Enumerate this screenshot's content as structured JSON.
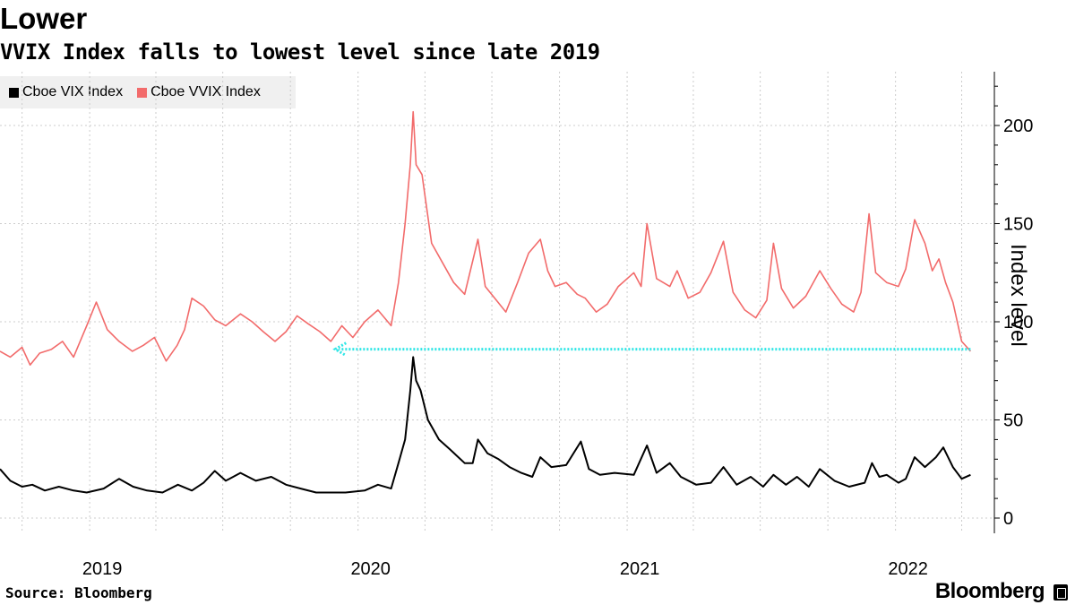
{
  "title": "Lower",
  "subtitle": "VVIX Index falls to lowest level since late 2019",
  "source": "Source: Bloomberg",
  "brand": "Bloomberg",
  "chart_data": {
    "type": "line",
    "ylabel": "Index level",
    "ylim": [
      0,
      225
    ],
    "yticks": [
      0,
      50,
      100,
      150,
      200
    ],
    "xlim": [
      "2018-09-01",
      "2022-04-15"
    ],
    "xtick_labels": [
      "2019",
      "2020",
      "2021",
      "2022"
    ],
    "xtick_label_dates": [
      "2019-01-01",
      "2020-01-01",
      "2021-01-01",
      "2022-01-01"
    ],
    "grid": true,
    "legend_position": "top-left",
    "annotation": {
      "type": "dotted-arrow",
      "y": 86,
      "x_from": "2022-04-13",
      "x_to": "2019-12-01",
      "color": "#2ee6e6"
    },
    "series": [
      {
        "name": "Cboe VIX Index",
        "color": "#000000",
        "points": [
          [
            "2018-09-01",
            25
          ],
          [
            "2018-09-15",
            19
          ],
          [
            "2018-10-01",
            16
          ],
          [
            "2018-10-15",
            17
          ],
          [
            "2018-11-01",
            14
          ],
          [
            "2018-11-20",
            16
          ],
          [
            "2018-12-10",
            14
          ],
          [
            "2018-12-28",
            13
          ],
          [
            "2019-01-20",
            15
          ],
          [
            "2019-02-10",
            20
          ],
          [
            "2019-03-01",
            16
          ],
          [
            "2019-03-20",
            14
          ],
          [
            "2019-04-10",
            13
          ],
          [
            "2019-05-01",
            17
          ],
          [
            "2019-05-20",
            14
          ],
          [
            "2019-06-05",
            18
          ],
          [
            "2019-06-20",
            24
          ],
          [
            "2019-07-05",
            19
          ],
          [
            "2019-07-25",
            23
          ],
          [
            "2019-08-15",
            19
          ],
          [
            "2019-09-05",
            21
          ],
          [
            "2019-09-25",
            17
          ],
          [
            "2019-10-15",
            15
          ],
          [
            "2019-11-05",
            13
          ],
          [
            "2019-11-25",
            13
          ],
          [
            "2019-12-15",
            13
          ],
          [
            "2020-01-10",
            14
          ],
          [
            "2020-01-28",
            17
          ],
          [
            "2020-02-15",
            15
          ],
          [
            "2020-02-25",
            28
          ],
          [
            "2020-03-05",
            40
          ],
          [
            "2020-03-12",
            65
          ],
          [
            "2020-03-16",
            82
          ],
          [
            "2020-03-20",
            70
          ],
          [
            "2020-03-26",
            65
          ],
          [
            "2020-04-05",
            50
          ],
          [
            "2020-04-20",
            40
          ],
          [
            "2020-05-05",
            35
          ],
          [
            "2020-05-25",
            28
          ],
          [
            "2020-06-05",
            28
          ],
          [
            "2020-06-12",
            40
          ],
          [
            "2020-06-25",
            33
          ],
          [
            "2020-07-10",
            30
          ],
          [
            "2020-07-25",
            26
          ],
          [
            "2020-08-10",
            23
          ],
          [
            "2020-08-25",
            21
          ],
          [
            "2020-09-05",
            31
          ],
          [
            "2020-09-20",
            26
          ],
          [
            "2020-10-10",
            27
          ],
          [
            "2020-10-30",
            39
          ],
          [
            "2020-11-10",
            25
          ],
          [
            "2020-11-25",
            22
          ],
          [
            "2020-12-15",
            23
          ],
          [
            "2021-01-10",
            22
          ],
          [
            "2021-01-28",
            37
          ],
          [
            "2021-02-10",
            23
          ],
          [
            "2021-02-28",
            28
          ],
          [
            "2021-03-15",
            21
          ],
          [
            "2021-04-05",
            17
          ],
          [
            "2021-04-25",
            18
          ],
          [
            "2021-05-12",
            26
          ],
          [
            "2021-05-30",
            17
          ],
          [
            "2021-06-18",
            21
          ],
          [
            "2021-07-05",
            16
          ],
          [
            "2021-07-19",
            22
          ],
          [
            "2021-08-05",
            17
          ],
          [
            "2021-08-20",
            21
          ],
          [
            "2021-09-05",
            16
          ],
          [
            "2021-09-20",
            25
          ],
          [
            "2021-10-10",
            19
          ],
          [
            "2021-10-30",
            16
          ],
          [
            "2021-11-20",
            18
          ],
          [
            "2021-11-30",
            28
          ],
          [
            "2021-12-10",
            21
          ],
          [
            "2021-12-20",
            22
          ],
          [
            "2022-01-05",
            18
          ],
          [
            "2022-01-15",
            20
          ],
          [
            "2022-01-27",
            31
          ],
          [
            "2022-02-10",
            26
          ],
          [
            "2022-02-25",
            31
          ],
          [
            "2022-03-07",
            36
          ],
          [
            "2022-03-20",
            26
          ],
          [
            "2022-04-01",
            20
          ],
          [
            "2022-04-13",
            22
          ]
        ]
      },
      {
        "name": "Cboe VVIX Index",
        "color": "#f26b6b",
        "points": [
          [
            "2018-09-01",
            85
          ],
          [
            "2018-09-15",
            82
          ],
          [
            "2018-10-01",
            87
          ],
          [
            "2018-10-12",
            78
          ],
          [
            "2018-10-25",
            84
          ],
          [
            "2018-11-10",
            86
          ],
          [
            "2018-11-25",
            90
          ],
          [
            "2018-12-10",
            82
          ],
          [
            "2018-12-28",
            98
          ],
          [
            "2019-01-10",
            110
          ],
          [
            "2019-01-25",
            96
          ],
          [
            "2019-02-10",
            90
          ],
          [
            "2019-02-28",
            85
          ],
          [
            "2019-03-15",
            88
          ],
          [
            "2019-03-30",
            92
          ],
          [
            "2019-04-15",
            80
          ],
          [
            "2019-04-30",
            88
          ],
          [
            "2019-05-10",
            96
          ],
          [
            "2019-05-20",
            112
          ],
          [
            "2019-06-05",
            108
          ],
          [
            "2019-06-20",
            101
          ],
          [
            "2019-07-05",
            98
          ],
          [
            "2019-07-25",
            104
          ],
          [
            "2019-08-10",
            100
          ],
          [
            "2019-08-25",
            95
          ],
          [
            "2019-09-10",
            90
          ],
          [
            "2019-09-25",
            95
          ],
          [
            "2019-10-10",
            103
          ],
          [
            "2019-10-25",
            99
          ],
          [
            "2019-11-10",
            95
          ],
          [
            "2019-11-25",
            90
          ],
          [
            "2019-12-10",
            98
          ],
          [
            "2019-12-25",
            92
          ],
          [
            "2020-01-10",
            100
          ],
          [
            "2020-01-28",
            106
          ],
          [
            "2020-02-15",
            98
          ],
          [
            "2020-02-25",
            120
          ],
          [
            "2020-03-05",
            150
          ],
          [
            "2020-03-12",
            180
          ],
          [
            "2020-03-16",
            207
          ],
          [
            "2020-03-20",
            180
          ],
          [
            "2020-03-28",
            175
          ],
          [
            "2020-04-10",
            140
          ],
          [
            "2020-04-25",
            130
          ],
          [
            "2020-05-10",
            120
          ],
          [
            "2020-05-25",
            114
          ],
          [
            "2020-06-12",
            142
          ],
          [
            "2020-06-22",
            118
          ],
          [
            "2020-07-05",
            112
          ],
          [
            "2020-07-20",
            105
          ],
          [
            "2020-08-05",
            120
          ],
          [
            "2020-08-20",
            135
          ],
          [
            "2020-09-05",
            142
          ],
          [
            "2020-09-15",
            126
          ],
          [
            "2020-09-25",
            118
          ],
          [
            "2020-10-10",
            120
          ],
          [
            "2020-10-25",
            114
          ],
          [
            "2020-11-05",
            112
          ],
          [
            "2020-11-20",
            105
          ],
          [
            "2020-12-05",
            109
          ],
          [
            "2020-12-20",
            118
          ],
          [
            "2021-01-10",
            125
          ],
          [
            "2021-01-20",
            118
          ],
          [
            "2021-01-28",
            150
          ],
          [
            "2021-02-10",
            122
          ],
          [
            "2021-02-28",
            118
          ],
          [
            "2021-03-10",
            126
          ],
          [
            "2021-03-25",
            112
          ],
          [
            "2021-04-10",
            115
          ],
          [
            "2021-04-25",
            125
          ],
          [
            "2021-05-12",
            141
          ],
          [
            "2021-05-25",
            115
          ],
          [
            "2021-06-10",
            106
          ],
          [
            "2021-06-25",
            102
          ],
          [
            "2021-07-10",
            111
          ],
          [
            "2021-07-19",
            140
          ],
          [
            "2021-07-30",
            117
          ],
          [
            "2021-08-15",
            107
          ],
          [
            "2021-09-01",
            113
          ],
          [
            "2021-09-20",
            126
          ],
          [
            "2021-10-05",
            117
          ],
          [
            "2021-10-20",
            109
          ],
          [
            "2021-11-05",
            105
          ],
          [
            "2021-11-15",
            115
          ],
          [
            "2021-11-26",
            155
          ],
          [
            "2021-12-05",
            125
          ],
          [
            "2021-12-20",
            120
          ],
          [
            "2022-01-05",
            118
          ],
          [
            "2022-01-15",
            127
          ],
          [
            "2022-01-27",
            152
          ],
          [
            "2022-02-10",
            140
          ],
          [
            "2022-02-20",
            126
          ],
          [
            "2022-03-01",
            132
          ],
          [
            "2022-03-10",
            120
          ],
          [
            "2022-03-20",
            110
          ],
          [
            "2022-04-01",
            90
          ],
          [
            "2022-04-13",
            85
          ]
        ]
      }
    ]
  }
}
